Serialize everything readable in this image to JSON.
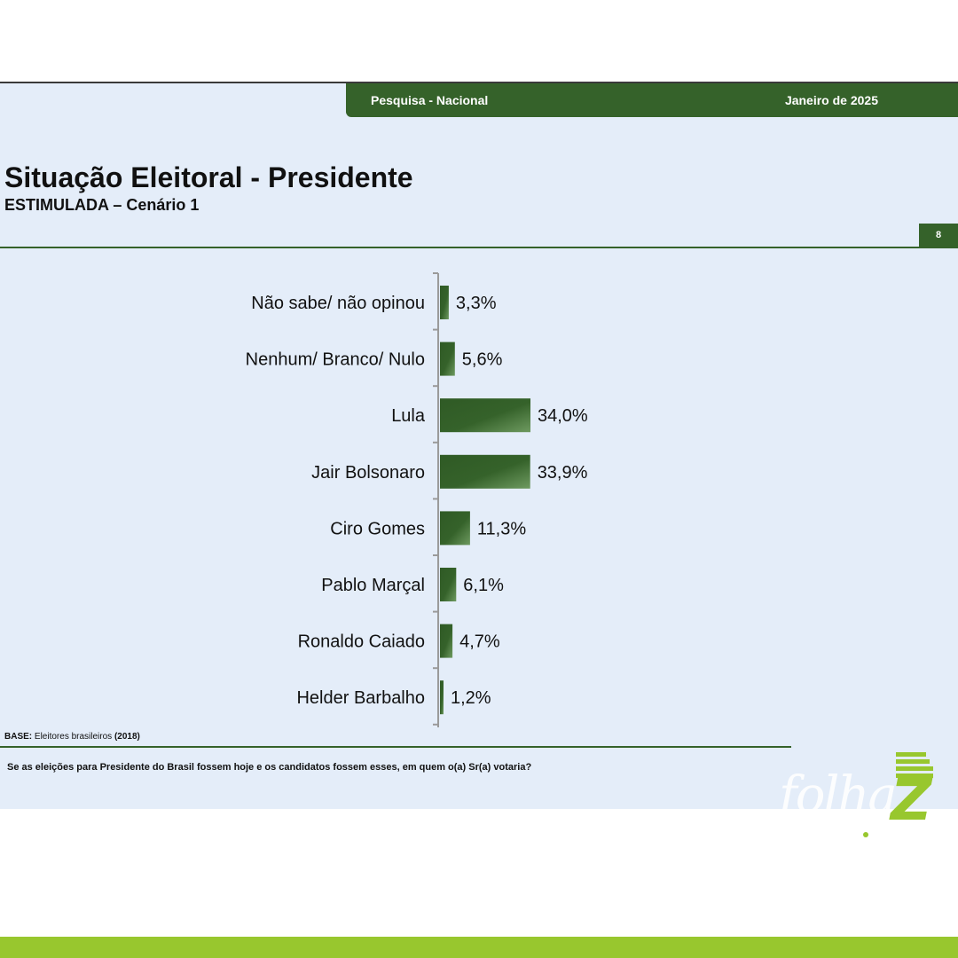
{
  "header": {
    "survey": "Pesquisa - Nacional",
    "date": "Janeiro de 2025",
    "page_number": "8"
  },
  "title": "Situação Eleitoral - Presidente",
  "subtitle": "ESTIMULADA – Cenário 1",
  "chart_data": {
    "type": "bar",
    "orientation": "horizontal",
    "categories": [
      "Não sabe/ não opinou",
      "Nenhum/ Branco/ Nulo",
      "Lula",
      "Jair Bolsonaro",
      "Ciro Gomes",
      "Pablo Marçal",
      "Ronaldo Caiado",
      "Helder Barbalho"
    ],
    "values": [
      3.3,
      5.6,
      34.0,
      33.9,
      11.3,
      6.1,
      4.7,
      1.2
    ],
    "value_labels": [
      "3,3%",
      "5,6%",
      "34,0%",
      "33,9%",
      "11,3%",
      "6,1%",
      "4,7%",
      "1,2%"
    ],
    "unit": "%",
    "bar_color": "#35622a",
    "grid": false,
    "legend": "none"
  },
  "footer": {
    "base_label": "BASE:",
    "base_text": "Eleitores brasileiros",
    "base_year": "(2018)",
    "question": "Se as eleições para Presidente do Brasil fossem hoje e os candidatos fossem esses, em quem o(a) Sr(a) votaria?"
  },
  "logo": {
    "text": "folha",
    "mark": "Z",
    "color": "#98c72e"
  },
  "colors": {
    "accent": "#35622a",
    "background": "#e4edf9",
    "brand": "#98c72e"
  }
}
